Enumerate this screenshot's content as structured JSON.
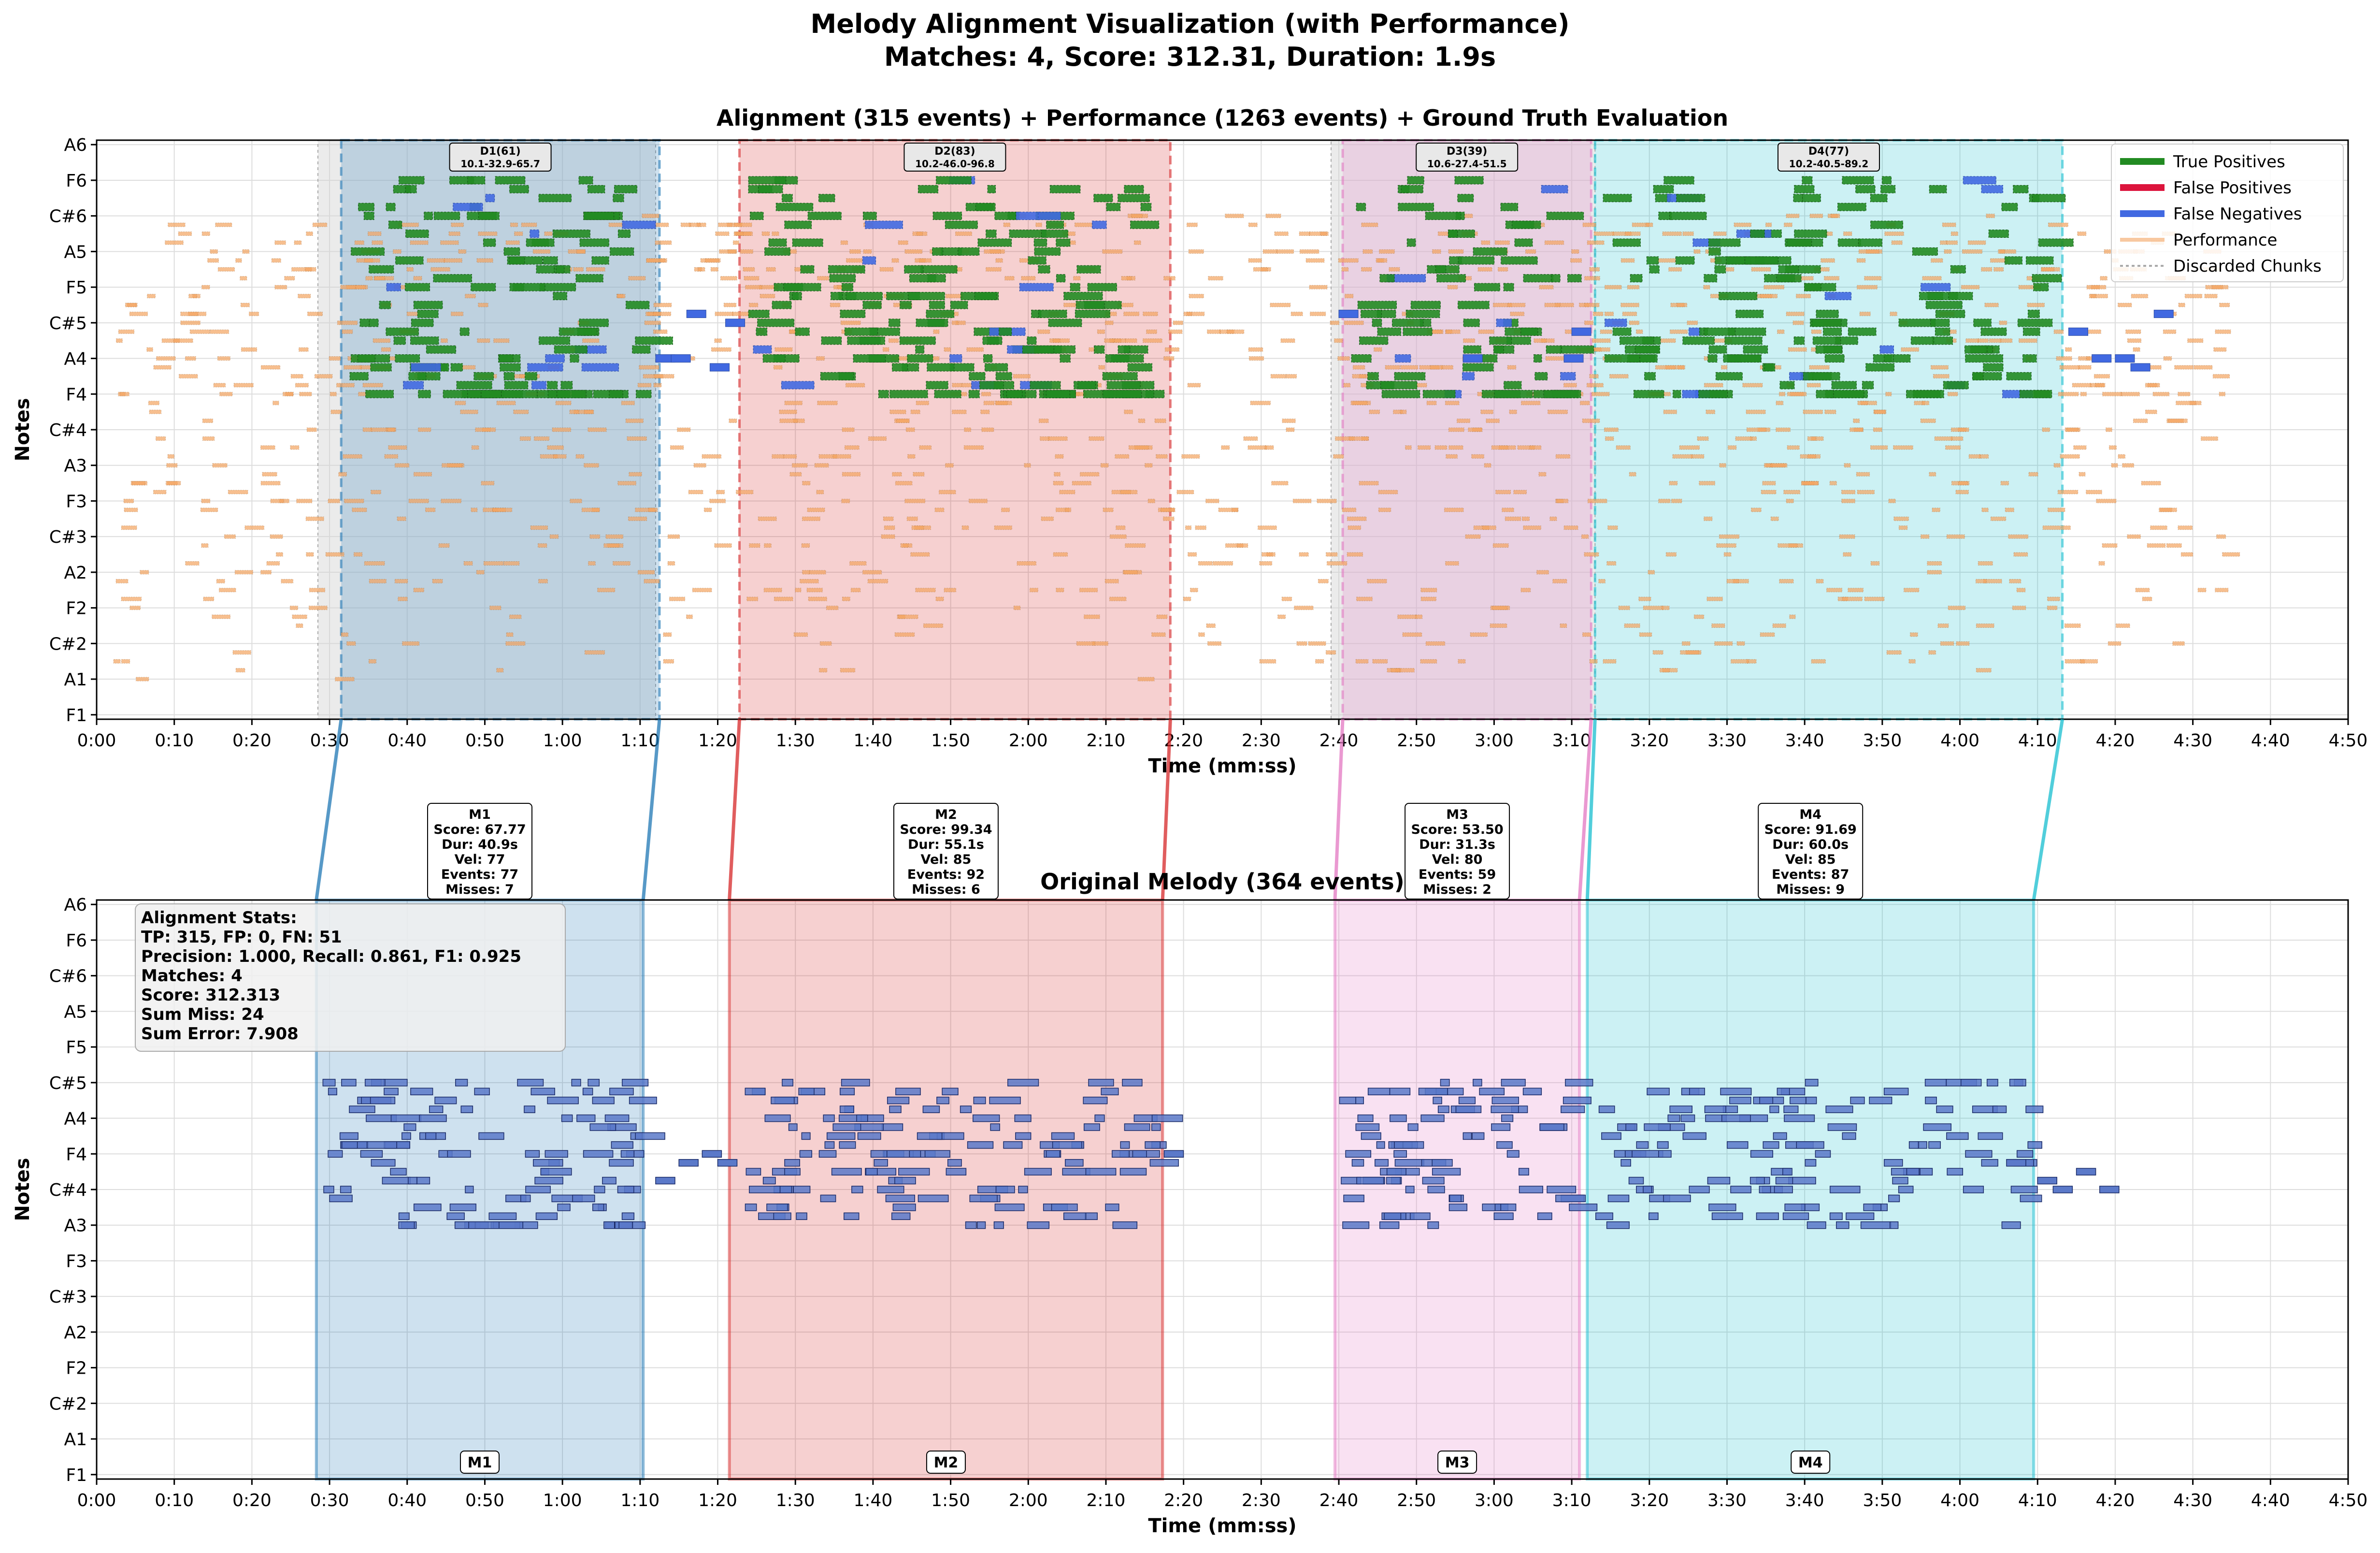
{
  "figure": {
    "title_line1": "Melody Alignment Visualization (with Performance)",
    "title_line2": "Matches: 4, Score: 312.31, Duration: 1.9s"
  },
  "colors": {
    "true_positive": "#228B22",
    "false_positive": "#DC143C",
    "false_negative": "#4169E1",
    "performance": "#F4A460",
    "melody_note": "#5B79C9",
    "discarded": "#D3D3D3",
    "match_1": "#1F77B4",
    "match_2": "#D62728",
    "match_3": "#E377C2",
    "match_4": "#17BECF"
  },
  "chart_data": [
    {
      "type": "piano-roll",
      "title": "Alignment (315 events) + Performance (1263 events) + Ground Truth Evaluation",
      "xlabel": "Time (mm:ss)",
      "ylabel": "Notes",
      "xlim": [
        0,
        290
      ],
      "x_ticks": [
        "0:00",
        "0:10",
        "0:20",
        "0:30",
        "0:40",
        "0:50",
        "1:00",
        "1:10",
        "1:20",
        "1:30",
        "1:40",
        "1:50",
        "2:00",
        "2:10",
        "2:20",
        "2:30",
        "2:40",
        "2:50",
        "3:00",
        "3:10",
        "3:20",
        "3:30",
        "3:40",
        "3:50",
        "4:00",
        "4:10",
        "4:20",
        "4:30",
        "4:40",
        "4:50"
      ],
      "y_ticks": [
        "F1",
        "A1",
        "C#2",
        "F2",
        "A2",
        "C#3",
        "F3",
        "A3",
        "C#4",
        "F4",
        "A4",
        "C#5",
        "F5",
        "A5",
        "C#6",
        "F6",
        "A6"
      ],
      "grid": true,
      "legend_position": "top-right",
      "legend": [
        "True Positives",
        "False Positives",
        "False Negatives",
        "Performance",
        "Discarded Chunks"
      ],
      "discarded_chunks": [
        [
          28.5,
          72.0
        ],
        [
          159.0,
          193.0
        ]
      ],
      "alignment_windows": [
        {
          "label": "D1(61)",
          "sublabel": "10.1-32.9-65.7",
          "start": 31.5,
          "end": 72.5
        },
        {
          "label": "D2(83)",
          "sublabel": "10.2-46.0-96.8",
          "start": 82.8,
          "end": 138.3
        },
        {
          "label": "D3(39)",
          "sublabel": "10.6-27.4-51.5",
          "start": 160.5,
          "end": 192.5
        },
        {
          "label": "D4(77)",
          "sublabel": "10.2-40.5-89.2",
          "start": 193.0,
          "end": 253.2
        }
      ],
      "true_positive_pitch_range": [
        "F4",
        "C#6"
      ],
      "performance_pitch_range": [
        "A1",
        "C#6"
      ]
    },
    {
      "type": "piano-roll",
      "title": "Original Melody (364 events)",
      "xlabel": "Time (mm:ss)",
      "ylabel": "Notes",
      "xlim": [
        0,
        290
      ],
      "x_ticks": [
        "0:00",
        "0:10",
        "0:20",
        "0:30",
        "0:40",
        "0:50",
        "1:00",
        "1:10",
        "1:20",
        "1:30",
        "1:40",
        "1:50",
        "2:00",
        "2:10",
        "2:20",
        "2:30",
        "2:40",
        "2:50",
        "3:00",
        "3:10",
        "3:20",
        "3:30",
        "3:40",
        "3:50",
        "4:00",
        "4:10",
        "4:20",
        "4:30",
        "4:40",
        "4:50"
      ],
      "y_ticks": [
        "F1",
        "A1",
        "C#2",
        "F2",
        "A2",
        "C#3",
        "F3",
        "A3",
        "C#4",
        "F4",
        "A4",
        "C#5",
        "F5",
        "A5",
        "C#6",
        "F6",
        "A6"
      ],
      "grid": true,
      "melody_pitch_range": [
        "A3",
        "C#5"
      ],
      "matches": [
        {
          "label": "M1",
          "start": 28.3,
          "end": 70.4,
          "score": "Score: 67.77",
          "dur": "Dur: 40.9s",
          "vel": "Vel: 77",
          "events": "Events: 77",
          "misses": "Misses: 7"
        },
        {
          "label": "M2",
          "start": 81.5,
          "end": 137.3,
          "score": "Score: 99.34",
          "dur": "Dur: 55.1s",
          "vel": "Vel: 85",
          "events": "Events: 92",
          "misses": "Misses: 6"
        },
        {
          "label": "M3",
          "start": 159.5,
          "end": 191.0,
          "score": "Score: 53.50",
          "dur": "Dur: 31.3s",
          "vel": "Vel: 80",
          "events": "Events: 59",
          "misses": "Misses: 2"
        },
        {
          "label": "M4",
          "start": 192.0,
          "end": 249.5,
          "score": "Score: 91.69",
          "dur": "Dur: 60.0s",
          "vel": "Vel: 85",
          "events": "Events: 87",
          "misses": "Misses: 9"
        }
      ],
      "stats": [
        "Alignment Stats:",
        "TP: 315, FP: 0, FN: 51",
        "Precision: 1.000, Recall: 0.861, F1: 0.925",
        "Matches: 4",
        "Score: 312.313",
        "Sum Miss: 24",
        "Sum Error: 7.908"
      ]
    }
  ]
}
